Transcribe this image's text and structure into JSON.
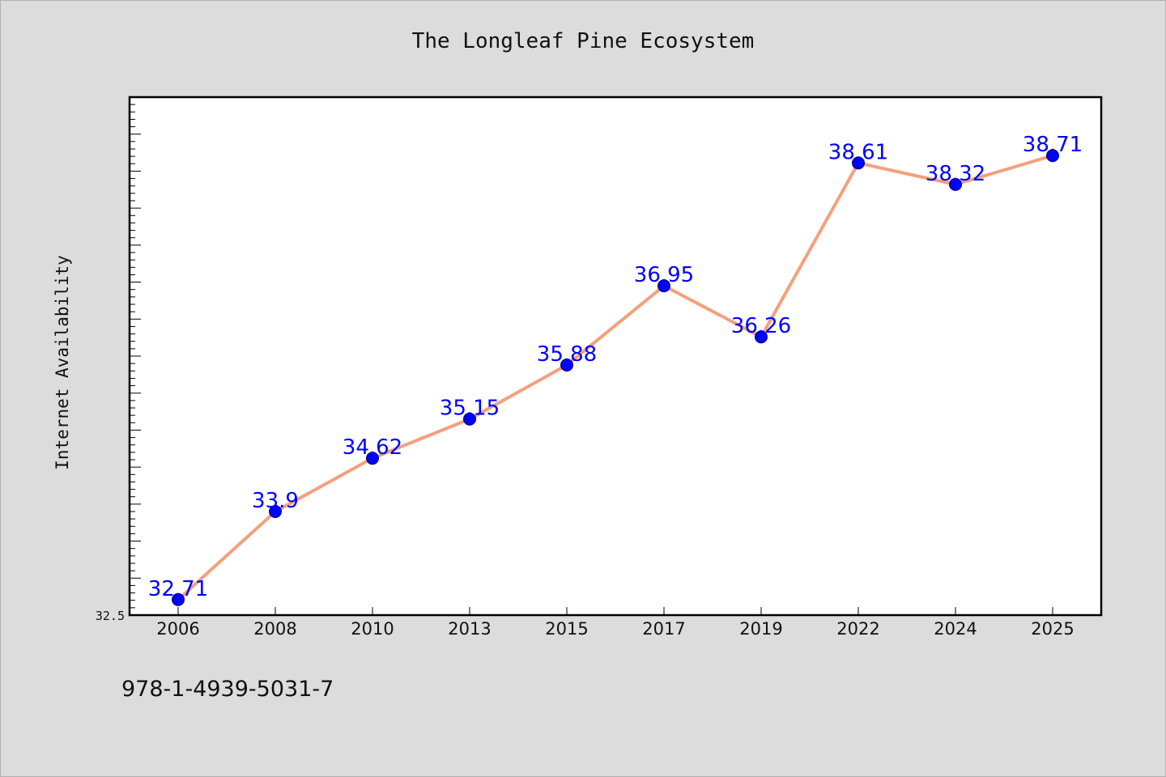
{
  "footer_text": "978-1-4939-5031-7",
  "colors": {
    "background": "#dcdcdc",
    "plot_background": "#ffffff",
    "line": "#f4a07c",
    "marker": "#0000ff",
    "data_label": "#0000ff"
  },
  "chart_data": {
    "type": "line",
    "title": "The Longleaf Pine Ecosystem",
    "xlabel": "",
    "ylabel": "Internet Availability",
    "categories": [
      "2006",
      "2008",
      "2010",
      "2013",
      "2015",
      "2017",
      "2019",
      "2022",
      "2024",
      "2025"
    ],
    "series": [
      {
        "values": [
          32.71,
          33.9,
          34.62,
          35.15,
          35.88,
          36.95,
          36.26,
          38.61,
          38.32,
          38.71
        ],
        "labels": [
          "32.71",
          "33.9",
          "34.62",
          "35.15",
          "35.88",
          "36.95",
          "36.26",
          "38.61",
          "38.32",
          "38.71"
        ]
      }
    ],
    "y_tick_labels": [
      "32.5"
    ],
    "ylim": [
      32.5,
      39.5
    ],
    "grid": false,
    "legend": "none"
  }
}
